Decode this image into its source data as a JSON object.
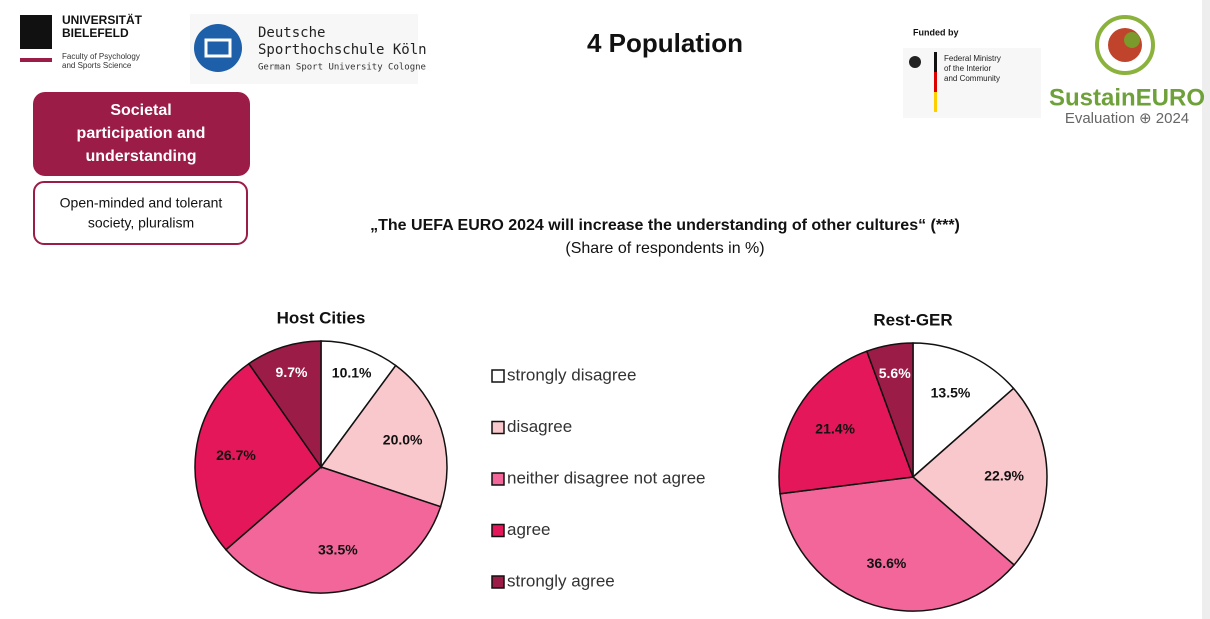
{
  "slide": {
    "title": "4 Population",
    "uni_name": [
      "UNIVERSITÄT",
      "BIELEFELD"
    ],
    "uni_faculty": [
      "Faculty of Psychology",
      "and Sports Science"
    ],
    "dshs_name": [
      "Deutsche",
      "Sporthochschule Köln"
    ],
    "dshs_sub": "German Sport University Cologne",
    "funded_by": "Funded by",
    "ministry": [
      "Federal Ministry",
      "of the Interior",
      "and Community"
    ],
    "project": "SustainEURO",
    "project_sub": "Evaluation ⊕ 2024",
    "category_box": [
      "Societal",
      "participation and",
      "understanding"
    ],
    "subcategory_box": [
      "Open-minded and tolerant",
      "society, pluralism"
    ],
    "question": "„The UEFA EURO 2024 will increase the understanding of other cultures“ (***)",
    "question_sub": "(Share of respondents in %)"
  },
  "chart_data": [
    {
      "type": "pie",
      "title": "Host Cities",
      "categories": [
        "strongly disagree",
        "disagree",
        "neither disagree not agree",
        "agree",
        "strongly agree"
      ],
      "values": [
        10.1,
        20.0,
        33.5,
        26.7,
        9.7
      ],
      "value_labels": [
        "10.1%",
        "20.0%",
        "33.5%",
        "26.7%",
        "9.7%"
      ],
      "colors": [
        "#ffffff",
        "#f9c8cc",
        "#f2669a",
        "#e5175b",
        "#9a1c47"
      ]
    },
    {
      "type": "pie",
      "title": "Rest-GER",
      "categories": [
        "strongly disagree",
        "disagree",
        "neither disagree not agree",
        "agree",
        "strongly agree"
      ],
      "values": [
        13.5,
        22.9,
        36.6,
        21.4,
        5.6
      ],
      "value_labels": [
        "13.5%",
        "22.9%",
        "36.6%",
        "21.4%",
        "5.6%"
      ],
      "colors": [
        "#ffffff",
        "#f9c8cc",
        "#f2669a",
        "#e5175b",
        "#9a1c47"
      ]
    }
  ]
}
